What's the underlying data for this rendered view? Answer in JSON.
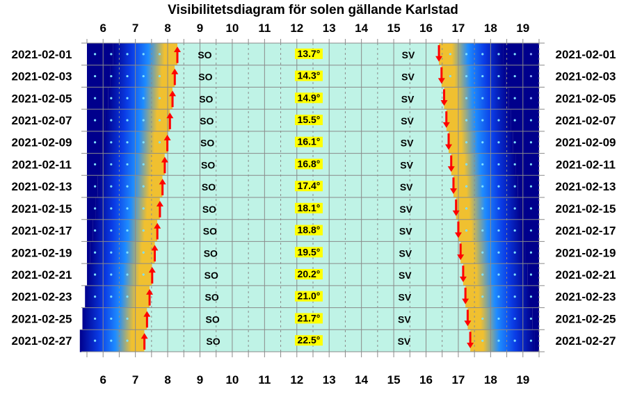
{
  "chart_data": {
    "type": "heatmap",
    "title": "Visibilitetsdiagram för solen gällande Karlstad",
    "x_ticks": [
      "6",
      "7",
      "8",
      "9",
      "10",
      "11",
      "12",
      "13",
      "14",
      "15",
      "16",
      "17",
      "18",
      "19"
    ],
    "x_range": [
      5.5,
      19.5
    ],
    "rows": [
      {
        "date": "2021-02-01",
        "sunrise": 8.3,
        "sunset": 16.4,
        "so_time": 9.15,
        "sv_time": 15.45,
        "max_alt": "13.7°"
      },
      {
        "date": "2021-02-03",
        "sunrise": 8.22,
        "sunset": 16.48,
        "so_time": 9.17,
        "sv_time": 15.44,
        "max_alt": "14.3°"
      },
      {
        "date": "2021-02-05",
        "sunrise": 8.15,
        "sunset": 16.56,
        "so_time": 9.19,
        "sv_time": 15.43,
        "max_alt": "14.9°"
      },
      {
        "date": "2021-02-07",
        "sunrise": 8.07,
        "sunset": 16.63,
        "so_time": 9.21,
        "sv_time": 15.42,
        "max_alt": "15.5°"
      },
      {
        "date": "2021-02-09",
        "sunrise": 7.99,
        "sunset": 16.7,
        "so_time": 9.23,
        "sv_time": 15.41,
        "max_alt": "16.1°"
      },
      {
        "date": "2021-02-11",
        "sunrise": 7.91,
        "sunset": 16.78,
        "so_time": 9.25,
        "sv_time": 15.4,
        "max_alt": "16.8°"
      },
      {
        "date": "2021-02-13",
        "sunrise": 7.84,
        "sunset": 16.85,
        "so_time": 9.27,
        "sv_time": 15.39,
        "max_alt": "17.4°"
      },
      {
        "date": "2021-02-15",
        "sunrise": 7.76,
        "sunset": 16.93,
        "so_time": 9.29,
        "sv_time": 15.38,
        "max_alt": "18.1°"
      },
      {
        "date": "2021-02-17",
        "sunrise": 7.68,
        "sunset": 17.0,
        "so_time": 9.31,
        "sv_time": 15.37,
        "max_alt": "18.8°"
      },
      {
        "date": "2021-02-19",
        "sunrise": 7.6,
        "sunset": 17.07,
        "so_time": 9.33,
        "sv_time": 15.36,
        "max_alt": "19.5°"
      },
      {
        "date": "2021-02-21",
        "sunrise": 7.52,
        "sunset": 17.15,
        "so_time": 9.35,
        "sv_time": 15.35,
        "max_alt": "20.2°"
      },
      {
        "date": "2021-02-23",
        "sunrise": 7.44,
        "sunset": 17.22,
        "so_time": 9.37,
        "sv_time": 15.34,
        "max_alt": "21.0°"
      },
      {
        "date": "2021-02-25",
        "sunrise": 7.36,
        "sunset": 17.29,
        "so_time": 9.39,
        "sv_time": 15.33,
        "max_alt": "21.7°"
      },
      {
        "date": "2021-02-27",
        "sunrise": 7.28,
        "sunset": 17.37,
        "so_time": 9.41,
        "sv_time": 15.32,
        "max_alt": "22.5°"
      }
    ],
    "so_label": "SO",
    "sv_label": "SV",
    "noon_time": 12.37,
    "colors": {
      "daylight": "#bff3e6",
      "night_dark": "#00008c",
      "night_mid": "#0a3ce6",
      "twilight_blue": "#1e8cff",
      "twilight_gold": "#f0c030",
      "arrow": "#ff0000",
      "alt_highlight": "#ffff00",
      "grid": "#8a8a8a"
    }
  }
}
